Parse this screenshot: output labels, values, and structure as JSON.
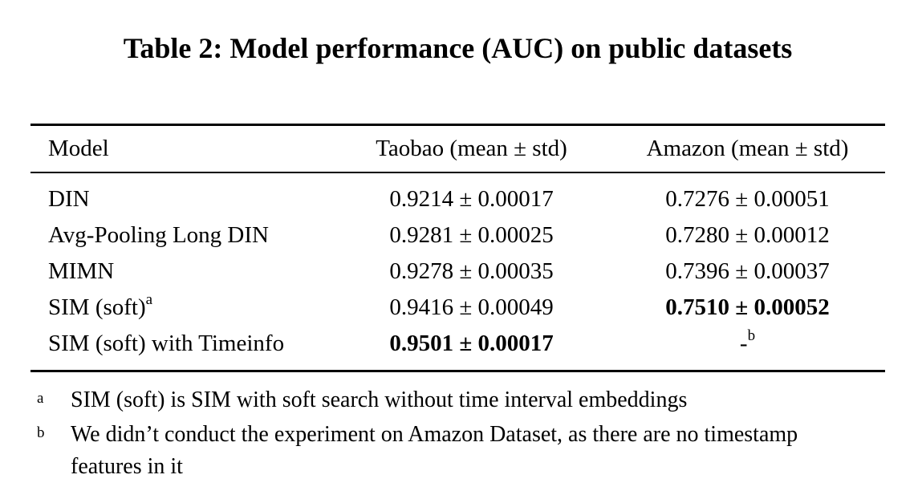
{
  "caption": "Table 2: Model performance (AUC) on public datasets",
  "table": {
    "headers": [
      "Model",
      "Taobao (mean ± std)",
      "Amazon (mean ± std)"
    ],
    "rows": [
      {
        "model": "DIN",
        "taobao": "0.9214 ± 0.00017",
        "taobao_bold": false,
        "amazon": "0.7276 ± 0.00051",
        "amazon_bold": false
      },
      {
        "model": "Avg-Pooling Long DIN",
        "taobao": "0.9281 ± 0.00025",
        "taobao_bold": false,
        "amazon": "0.7280 ± 0.00012",
        "amazon_bold": false
      },
      {
        "model": "MIMN",
        "taobao": "0.9278 ± 0.00035",
        "taobao_bold": false,
        "amazon": "0.7396 ± 0.00037",
        "amazon_bold": false
      },
      {
        "model": "SIM (soft)",
        "model_sup": "a",
        "taobao": "0.9416 ± 0.00049",
        "taobao_bold": false,
        "amazon": "0.7510 ± 0.00052",
        "amazon_bold": true
      },
      {
        "model": "SIM (soft) with Timeinfo",
        "taobao": "0.9501 ± 0.00017",
        "taobao_bold": true,
        "amazon": "-",
        "amazon_sup": "b",
        "amazon_bold": false
      }
    ]
  },
  "footnotes": [
    {
      "marker": "a",
      "text": "SIM (soft) is SIM with soft search without time interval embeddings"
    },
    {
      "marker": "b",
      "text": "We didn’t conduct the experiment on Amazon Dataset, as there are no timestamp features in it"
    }
  ],
  "colors": {
    "text": "#000000",
    "background": "#ffffff",
    "rule": "#000000"
  }
}
